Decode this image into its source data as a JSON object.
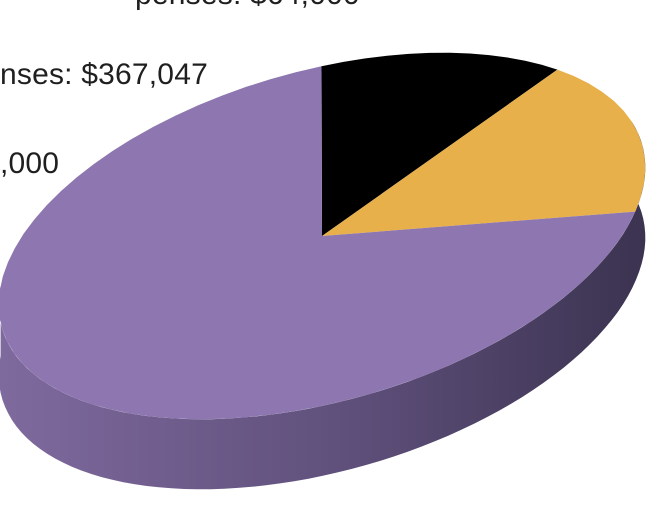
{
  "chart_data": {
    "type": "pie",
    "style": "3d",
    "legend_lines": [
      "penses: $64,000",
      "nses: $367,047",
      ",000"
    ],
    "slices": [
      {
        "value": 0.13,
        "color": "#000000"
      },
      {
        "value": 0.16,
        "color": "#E8B04B"
      },
      {
        "value": 0.71,
        "color": "#8E77B0"
      }
    ],
    "side_color_light": "#7F6A9E",
    "side_color_dark": "#3B3350"
  }
}
